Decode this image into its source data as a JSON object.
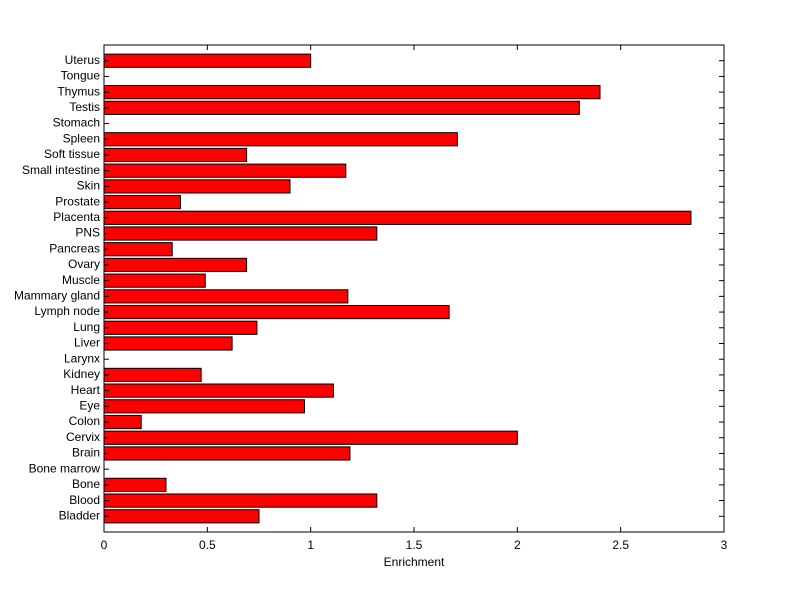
{
  "chart_data": {
    "type": "barh",
    "x_label": "Enrichment",
    "categories": [
      "Bladder",
      "Blood",
      "Bone",
      "Bone marrow",
      "Brain",
      "Cervix",
      "Colon",
      "Eye",
      "Heart",
      "Kidney",
      "Larynx",
      "Liver",
      "Lung",
      "Lymph node",
      "Mammary gland",
      "Muscle",
      "Ovary",
      "Pancreas",
      "PNS",
      "Placenta",
      "Prostate",
      "Skin",
      "Small intestine",
      "Soft tissue",
      "Spleen",
      "Stomach",
      "Testis",
      "Thymus",
      "Tongue",
      "Uterus"
    ],
    "values": [
      0.75,
      1.32,
      0.3,
      0,
      1.19,
      2.0,
      0.18,
      0.97,
      1.11,
      0.47,
      0,
      0.62,
      0.74,
      1.67,
      1.18,
      0.49,
      0.69,
      0.33,
      1.32,
      2.84,
      0.37,
      0.9,
      1.17,
      0.69,
      1.71,
      0,
      2.3,
      2.4,
      0,
      1.0
    ],
    "color": "#ff0000",
    "xlim": [
      0,
      3
    ],
    "xticks": [
      0,
      0.5,
      1,
      1.5,
      2,
      2.5,
      3
    ]
  }
}
